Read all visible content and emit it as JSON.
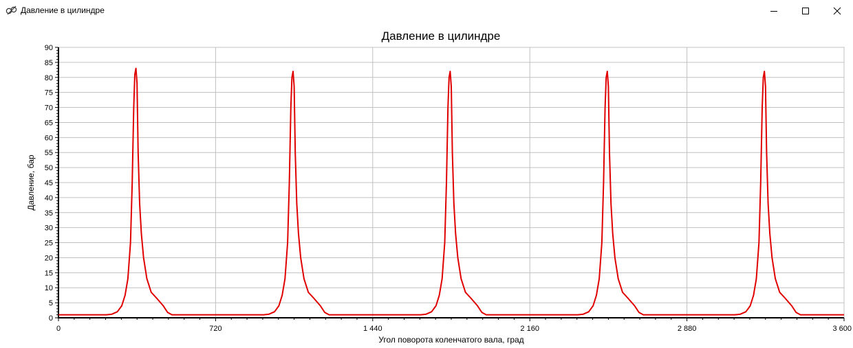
{
  "window": {
    "title": "Давление в цилиндре",
    "app_icon": "engine-chart-icon",
    "controls": [
      "minimize-icon",
      "maximize-icon",
      "close-icon"
    ]
  },
  "chart_data": {
    "type": "line",
    "title": "Давление в цилиндре",
    "xlabel": "Угол поворота коленчатого вала, град",
    "ylabel": "Давление, бар",
    "xlim": [
      0,
      3600
    ],
    "ylim": [
      0,
      90
    ],
    "x_ticks": [
      0,
      720,
      1440,
      2160,
      2880,
      3600
    ],
    "x_tick_labels": [
      "0",
      "720",
      "1 440",
      "2 160",
      "2 880",
      "3 600"
    ],
    "y_ticks": [
      0,
      5,
      10,
      15,
      20,
      25,
      30,
      35,
      40,
      45,
      50,
      55,
      60,
      65,
      70,
      75,
      80,
      85,
      90
    ],
    "grid": true,
    "series_color": "#e00000",
    "series": [
      {
        "points": [
          [
            0,
            1
          ],
          [
            220,
            1
          ],
          [
            245,
            1.2
          ],
          [
            270,
            2
          ],
          [
            290,
            4
          ],
          [
            305,
            7.5
          ],
          [
            318,
            13
          ],
          [
            330,
            25
          ],
          [
            338,
            45
          ],
          [
            345,
            70
          ],
          [
            350,
            81
          ],
          [
            355,
            83
          ],
          [
            360,
            78
          ],
          [
            365,
            55
          ],
          [
            372,
            38
          ],
          [
            380,
            28
          ],
          [
            390,
            20
          ],
          [
            405,
            13
          ],
          [
            425,
            8.5
          ],
          [
            450,
            6.5
          ],
          [
            480,
            4
          ],
          [
            500,
            1.8
          ],
          [
            520,
            1
          ],
          [
            940,
            1
          ],
          [
            965,
            1.2
          ],
          [
            990,
            2
          ],
          [
            1010,
            4
          ],
          [
            1025,
            7.5
          ],
          [
            1038,
            13
          ],
          [
            1050,
            25
          ],
          [
            1058,
            45
          ],
          [
            1065,
            70
          ],
          [
            1070,
            80
          ],
          [
            1075,
            82
          ],
          [
            1080,
            77
          ],
          [
            1085,
            55
          ],
          [
            1092,
            38
          ],
          [
            1100,
            28
          ],
          [
            1110,
            20
          ],
          [
            1125,
            13
          ],
          [
            1145,
            8.5
          ],
          [
            1170,
            6.5
          ],
          [
            1200,
            4
          ],
          [
            1220,
            1.8
          ],
          [
            1240,
            1
          ],
          [
            1660,
            1
          ],
          [
            1685,
            1.2
          ],
          [
            1710,
            2
          ],
          [
            1730,
            4
          ],
          [
            1745,
            7.5
          ],
          [
            1758,
            13
          ],
          [
            1770,
            25
          ],
          [
            1778,
            45
          ],
          [
            1785,
            70
          ],
          [
            1790,
            80
          ],
          [
            1795,
            82
          ],
          [
            1800,
            77
          ],
          [
            1805,
            55
          ],
          [
            1812,
            38
          ],
          [
            1820,
            28
          ],
          [
            1830,
            20
          ],
          [
            1845,
            13
          ],
          [
            1865,
            8.5
          ],
          [
            1890,
            6.5
          ],
          [
            1920,
            4
          ],
          [
            1940,
            1.8
          ],
          [
            1960,
            1
          ],
          [
            2380,
            1
          ],
          [
            2405,
            1.2
          ],
          [
            2430,
            2
          ],
          [
            2450,
            4
          ],
          [
            2465,
            7.5
          ],
          [
            2478,
            13
          ],
          [
            2490,
            25
          ],
          [
            2498,
            45
          ],
          [
            2505,
            70
          ],
          [
            2510,
            80
          ],
          [
            2515,
            82
          ],
          [
            2520,
            77
          ],
          [
            2525,
            55
          ],
          [
            2532,
            38
          ],
          [
            2540,
            28
          ],
          [
            2550,
            20
          ],
          [
            2565,
            13
          ],
          [
            2585,
            8.5
          ],
          [
            2610,
            6.5
          ],
          [
            2640,
            4
          ],
          [
            2660,
            1.8
          ],
          [
            2680,
            1
          ],
          [
            3100,
            1
          ],
          [
            3125,
            1.2
          ],
          [
            3150,
            2
          ],
          [
            3170,
            4
          ],
          [
            3185,
            7.5
          ],
          [
            3198,
            13
          ],
          [
            3210,
            25
          ],
          [
            3218,
            45
          ],
          [
            3225,
            70
          ],
          [
            3230,
            80
          ],
          [
            3235,
            82
          ],
          [
            3240,
            77
          ],
          [
            3245,
            55
          ],
          [
            3252,
            38
          ],
          [
            3260,
            28
          ],
          [
            3270,
            20
          ],
          [
            3285,
            13
          ],
          [
            3305,
            8.5
          ],
          [
            3330,
            6.5
          ],
          [
            3360,
            4
          ],
          [
            3380,
            1.8
          ],
          [
            3400,
            1
          ],
          [
            3600,
            1
          ]
        ]
      }
    ]
  }
}
